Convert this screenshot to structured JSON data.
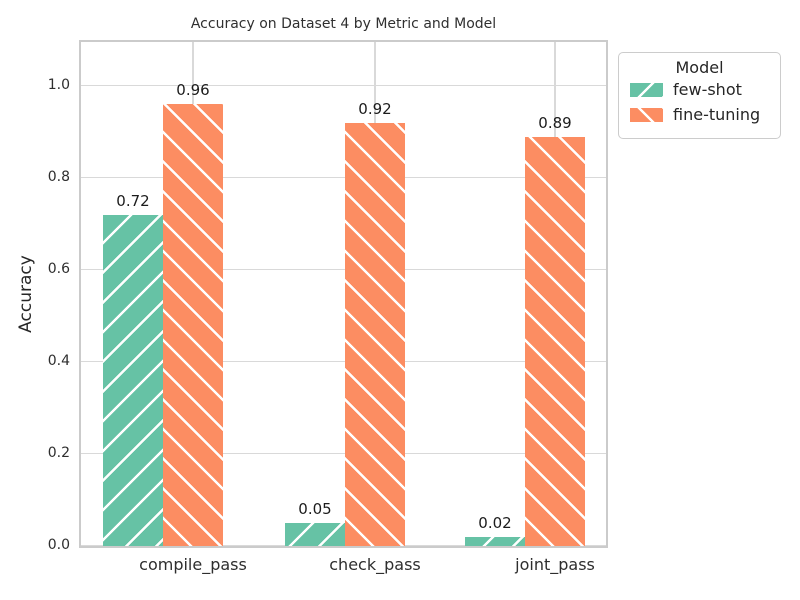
{
  "figure": {
    "title": "Accuracy on Dataset 4 by Metric and Model",
    "ylabel": "Accuracy"
  },
  "legend": {
    "title": "Model"
  },
  "chart_data": {
    "type": "bar",
    "title": "Accuracy on Dataset 4 by Metric and Model",
    "xlabel": "",
    "ylabel": "Accuracy",
    "categories": [
      "compile_pass",
      "check_pass",
      "joint_pass"
    ],
    "series": [
      {
        "name": "few-shot",
        "color": "#66c2a5",
        "hatch": "/",
        "values": [
          0.72,
          0.05,
          0.02
        ]
      },
      {
        "name": "fine-tuning",
        "color": "#fc8d62",
        "hatch": "\\",
        "values": [
          0.96,
          0.92,
          0.89
        ]
      }
    ],
    "bar_value_labels": [
      [
        "0.72",
        "0.05",
        "0.02"
      ],
      [
        "0.96",
        "0.92",
        "0.89"
      ]
    ],
    "ylim": [
      0,
      1.104
    ],
    "yticks": [
      0.0,
      0.2,
      0.4,
      0.6,
      0.8,
      1.0
    ],
    "grid": true,
    "hatch_color": "#ffffff",
    "legend_title": "Model",
    "legend_position": "upper-right-outside"
  }
}
